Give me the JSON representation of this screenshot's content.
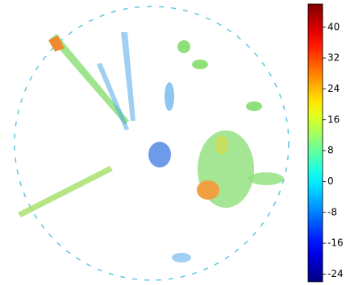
{
  "chart_data": {
    "type": "heatmap",
    "colormap": "jet",
    "clim": [
      -26,
      46
    ],
    "colorbar_ticks": [
      40,
      32,
      24,
      16,
      8,
      0,
      -8,
      -16,
      -24
    ]
  }
}
